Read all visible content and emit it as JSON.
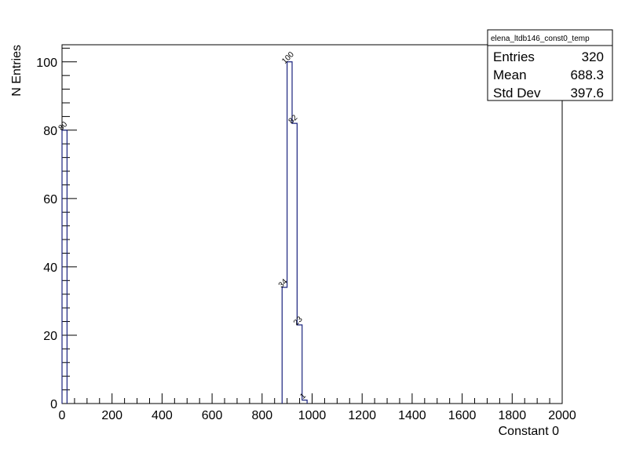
{
  "chart_data": {
    "type": "histogram",
    "title": "",
    "xlabel": "Constant 0",
    "ylabel": "N Entries",
    "xlim": [
      0,
      2000
    ],
    "ylim": [
      0,
      105
    ],
    "x_ticks": [
      0,
      200,
      400,
      600,
      800,
      1000,
      1200,
      1400,
      1600,
      1800,
      2000
    ],
    "y_ticks": [
      0,
      20,
      40,
      60,
      80,
      100
    ],
    "bin_width": 20,
    "bins": [
      {
        "x0": 0,
        "x1": 20,
        "value": 80
      },
      {
        "x0": 880,
        "x1": 900,
        "value": 34
      },
      {
        "x0": 900,
        "x1": 920,
        "value": 100
      },
      {
        "x0": 920,
        "x1": 940,
        "value": 82
      },
      {
        "x0": 940,
        "x1": 960,
        "value": 23
      },
      {
        "x0": 960,
        "x1": 980,
        "value": 1
      }
    ],
    "line_color": "#1a237e",
    "grid": false,
    "stats_box": {
      "title": "elena_ltdb146_const0_temp",
      "position": "top-right",
      "rows": [
        {
          "label": "Entries",
          "value": "320"
        },
        {
          "label": "Mean",
          "value": "688.3"
        },
        {
          "label": "Std Dev",
          "value": "397.6"
        }
      ]
    }
  }
}
